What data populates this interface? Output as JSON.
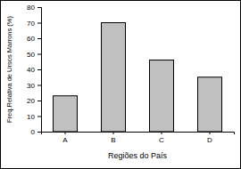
{
  "chart_data": {
    "type": "bar",
    "xlabel": "Regiões do País",
    "ylabel": "Freq.Relativa de Ursos Marrons (%)",
    "categories": [
      "A",
      "B",
      "C",
      "D"
    ],
    "values": [
      23,
      70,
      46,
      35
    ],
    "color": "#c0c0c0",
    "ylim": [
      0,
      80
    ],
    "yticks": [
      0,
      10,
      20,
      30,
      40,
      50,
      60,
      70,
      80
    ],
    "grid": false
  }
}
